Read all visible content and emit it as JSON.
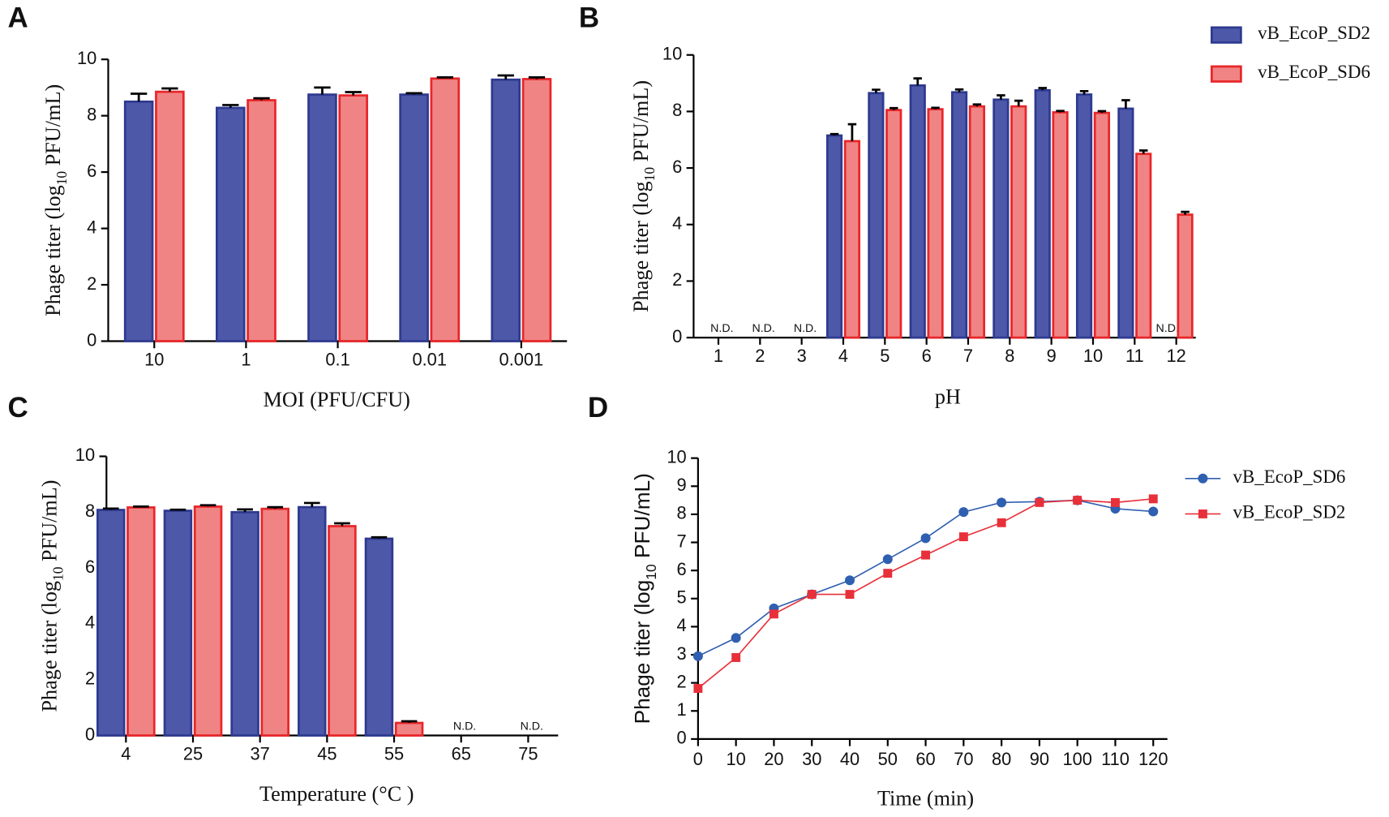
{
  "chart_data": [
    {
      "type": "bar",
      "panel": "A",
      "y_label": [
        "Phage titer (log",
        "10",
        " PFU/mL)"
      ],
      "x_label": "MOI (PFU/CFU)",
      "categories": [
        "10",
        "1",
        "0.1",
        "0.01",
        "0.001"
      ],
      "series": [
        {
          "color": "#4e58a8",
          "edge_color": "#2e3a90",
          "values": [
            8.5,
            8.28,
            8.75,
            8.75,
            9.28
          ],
          "errors": [
            0.28,
            0.1,
            0.25,
            0.05,
            0.15
          ]
        },
        {
          "color": "#f08484",
          "edge_color": "#e8262a",
          "values": [
            8.85,
            8.55,
            8.72,
            9.32,
            9.3
          ],
          "errors": [
            0.12,
            0.07,
            0.12,
            0.04,
            0.06
          ]
        }
      ],
      "ylim": [
        0,
        10
      ],
      "yticks": [
        0,
        2,
        4,
        6,
        8,
        10
      ]
    },
    {
      "type": "bar",
      "panel": "B",
      "y_label": [
        "Phage titer (log",
        "10",
        " PFU/mL)"
      ],
      "x_label": "pH",
      "categories": [
        "1",
        "2",
        "3",
        "4",
        "5",
        "6",
        "7",
        "8",
        "9",
        "10",
        "11",
        "12"
      ],
      "series": [
        {
          "name": "vB_EcoP_SD2",
          "color": "#4e58a8",
          "edge_color": "#2e3a90",
          "values": [
            null,
            null,
            null,
            7.15,
            8.65,
            8.92,
            8.68,
            8.42,
            8.75,
            8.6,
            8.1,
            null
          ],
          "errors": [
            null,
            null,
            null,
            0.05,
            0.12,
            0.25,
            0.1,
            0.15,
            0.08,
            0.12,
            0.3,
            null
          ]
        },
        {
          "name": "vB_EcoP_SD6",
          "color": "#f08484",
          "edge_color": "#e8262a",
          "values": [
            null,
            null,
            null,
            6.95,
            8.05,
            8.08,
            8.18,
            8.18,
            7.97,
            7.95,
            6.5,
            4.35
          ],
          "errors": [
            null,
            null,
            null,
            0.6,
            0.07,
            0.05,
            0.07,
            0.2,
            0.05,
            0.06,
            0.12,
            0.1
          ]
        }
      ],
      "nd_label": "N.D.",
      "legend": "top right",
      "ylim": [
        0,
        10
      ],
      "yticks": [
        0,
        2,
        4,
        6,
        8,
        10
      ]
    },
    {
      "type": "bar",
      "panel": "C",
      "y_label": [
        "Phage titer (log",
        "10",
        " PFU/mL)"
      ],
      "x_label": "Temperature (°C )",
      "categories": [
        "4",
        "25",
        "37",
        "45",
        "55",
        "65",
        "75"
      ],
      "series": [
        {
          "color": "#4e58a8",
          "edge_color": "#2e3a90",
          "values": [
            8.08,
            8.05,
            8.0,
            8.18,
            7.05,
            null,
            null
          ],
          "errors": [
            0.05,
            0.04,
            0.1,
            0.15,
            0.05,
            null,
            null
          ]
        },
        {
          "color": "#f08484",
          "edge_color": "#e8262a",
          "values": [
            8.17,
            8.2,
            8.12,
            7.5,
            0.45,
            null,
            null
          ],
          "errors": [
            0.03,
            0.05,
            0.06,
            0.1,
            0.06,
            null,
            null
          ]
        }
      ],
      "nd_label": "N.D.",
      "ylim": [
        0,
        10
      ],
      "yticks": [
        0,
        2,
        4,
        6,
        8,
        10
      ]
    },
    {
      "type": "line",
      "panel": "D",
      "y_label": [
        "Phage titer (log",
        "10",
        " PFU/mL)"
      ],
      "x_label": "Time (min)",
      "x": [
        0,
        10,
        20,
        30,
        40,
        50,
        60,
        70,
        80,
        90,
        100,
        110,
        120
      ],
      "series": [
        {
          "name": "vB_EcoP_SD6",
          "color": "#2f5fb0",
          "marker": "circle",
          "values": [
            2.95,
            3.6,
            4.65,
            5.15,
            5.65,
            6.4,
            7.15,
            8.08,
            8.42,
            8.45,
            8.5,
            8.2,
            8.1
          ]
        },
        {
          "name": "vB_EcoP_SD2",
          "color": "#e8303a",
          "marker": "square",
          "values": [
            1.8,
            2.9,
            4.45,
            5.15,
            5.15,
            5.9,
            6.55,
            7.2,
            7.7,
            8.42,
            8.5,
            8.42,
            8.55
          ]
        }
      ],
      "legend": "right",
      "xlim": [
        0,
        120
      ],
      "xticks": [
        0,
        10,
        20,
        30,
        40,
        50,
        60,
        70,
        80,
        90,
        100,
        110,
        120
      ],
      "ylim": [
        0,
        10
      ],
      "yticks": [
        0,
        1,
        2,
        3,
        4,
        5,
        6,
        7,
        8,
        9,
        10
      ]
    }
  ]
}
